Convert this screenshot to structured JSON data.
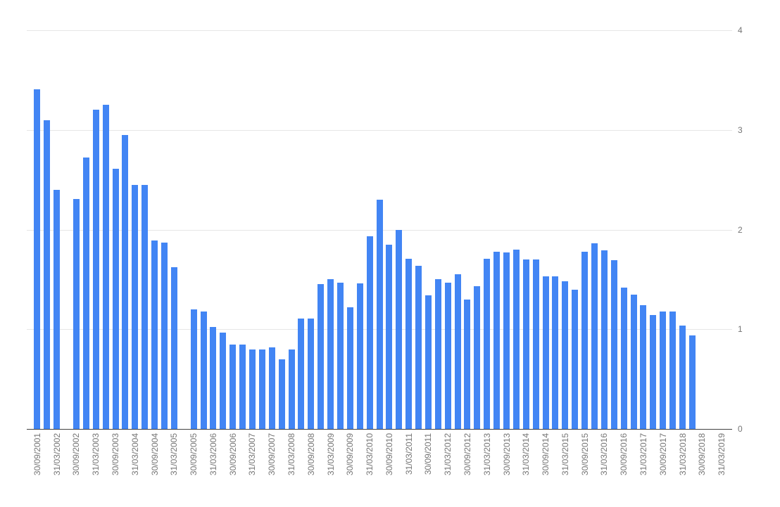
{
  "chart_data": {
    "type": "bar",
    "title": "",
    "xlabel": "",
    "ylabel": "",
    "legend": "none",
    "grid": true,
    "y_axis_side": "right",
    "ylim": [
      0,
      4
    ],
    "yticks": [
      0,
      1,
      2,
      3,
      4
    ],
    "x_labels_every_n_slots": 2,
    "x_tick_labels": [
      "30/09/2001",
      "31/03/2002",
      "30/09/2002",
      "31/03/2003",
      "30/09/2003",
      "31/03/2004",
      "30/09/2004",
      "31/03/2005",
      "30/09/2005",
      "31/03/2006",
      "30/09/2006",
      "31/03/2007",
      "30/09/2007",
      "31/03/2008",
      "30/09/2008",
      "31/03/2009",
      "30/09/2009",
      "31/03/2010",
      "30/09/2010",
      "31/03/2011",
      "30/09/2011",
      "31/03/2012",
      "30/09/2012",
      "31/03/2013",
      "30/09/2013",
      "31/03/2014",
      "30/09/2014",
      "31/03/2015",
      "30/09/2015",
      "31/03/2016",
      "30/09/2016",
      "31/03/2017",
      "30/09/2017",
      "31/03/2018",
      "30/09/2018",
      "31/03/2019"
    ],
    "values": [
      3.41,
      3.1,
      2.4,
      null,
      2.31,
      2.72,
      3.2,
      3.25,
      2.61,
      2.95,
      2.45,
      2.45,
      1.89,
      1.87,
      1.62,
      null,
      1.2,
      1.18,
      1.02,
      0.97,
      0.85,
      0.85,
      0.8,
      0.8,
      0.82,
      0.7,
      0.8,
      1.11,
      1.11,
      1.45,
      1.5,
      1.47,
      1.22,
      1.46,
      1.93,
      2.3,
      1.85,
      2.0,
      1.71,
      1.64,
      1.34,
      1.5,
      1.47,
      1.55,
      1.3,
      1.43,
      1.71,
      1.78,
      1.77,
      1.8,
      1.7,
      1.7,
      1.53,
      1.53,
      1.48,
      1.4,
      1.78,
      1.86,
      1.79,
      1.69,
      1.42,
      1.35,
      1.24,
      1.14,
      1.18,
      1.18,
      1.04,
      0.94,
      null,
      null,
      null
    ],
    "colors": {
      "bar": "#4285f4",
      "gridline": "#e6e6e6",
      "axis_line": "#424242",
      "tick_label": "#757575",
      "background": "#ffffff"
    }
  }
}
